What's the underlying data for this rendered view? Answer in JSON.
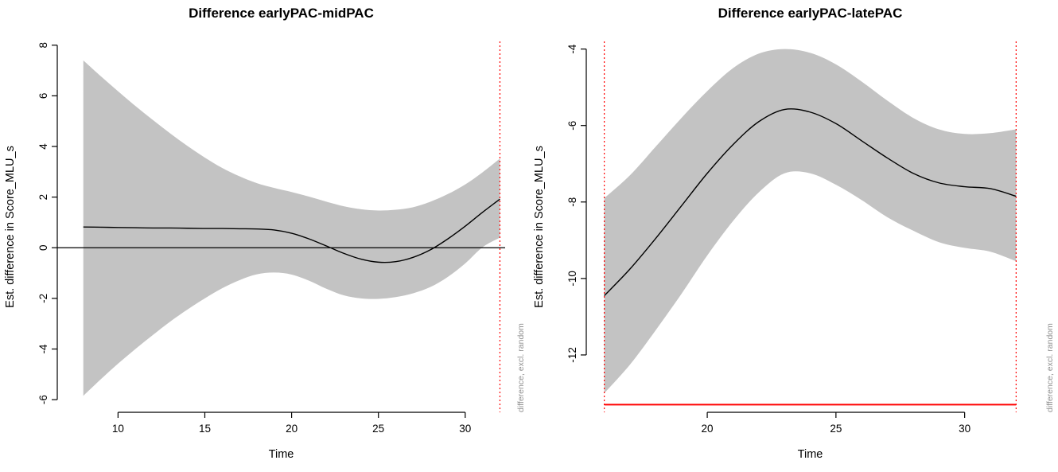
{
  "page": {
    "background": "#ffffff"
  },
  "chart_data": [
    {
      "type": "line",
      "title": "Difference earlyPAC-midPAC",
      "xlabel": "Time",
      "ylabel": "Est. difference in Score_MLU_s",
      "side_label": "difference, excl. random",
      "xlim": [
        6.5,
        32.3
      ],
      "ylim": [
        -6.5,
        8.15
      ],
      "xticks": [
        10,
        15,
        20,
        25,
        30
      ],
      "yticks": [
        -6,
        -4,
        -2,
        0,
        2,
        4,
        6,
        8
      ],
      "x": [
        8,
        9,
        10,
        11,
        12,
        13,
        14,
        15,
        16,
        17,
        18,
        19,
        20,
        21,
        22,
        23,
        24,
        25,
        26,
        27,
        28,
        29,
        30,
        31,
        32
      ],
      "series": [
        {
          "name": "estimated difference",
          "values": [
            0.82,
            0.81,
            0.8,
            0.79,
            0.78,
            0.78,
            0.77,
            0.76,
            0.76,
            0.75,
            0.74,
            0.7,
            0.57,
            0.35,
            0.07,
            -0.22,
            -0.45,
            -0.57,
            -0.55,
            -0.38,
            -0.08,
            0.35,
            0.85,
            1.4,
            1.92
          ]
        }
      ],
      "band": {
        "upper": [
          7.4,
          6.78,
          6.18,
          5.6,
          5.05,
          4.52,
          4.02,
          3.56,
          3.15,
          2.82,
          2.55,
          2.36,
          2.2,
          2.02,
          1.82,
          1.64,
          1.52,
          1.47,
          1.5,
          1.6,
          1.82,
          2.12,
          2.5,
          2.98,
          3.52
        ],
        "lower": [
          -5.85,
          -5.2,
          -4.58,
          -4.0,
          -3.45,
          -2.92,
          -2.44,
          -2.0,
          -1.6,
          -1.28,
          -1.05,
          -0.98,
          -1.06,
          -1.3,
          -1.62,
          -1.88,
          -2.0,
          -2.02,
          -1.95,
          -1.8,
          -1.55,
          -1.15,
          -0.62,
          0.02,
          0.4
        ]
      },
      "hlines": [
        {
          "y": 0,
          "color": "#000000",
          "width": 1.2,
          "style": "solid",
          "full_width": true
        }
      ],
      "vlines": [
        {
          "x": 32,
          "color": "#ff0000",
          "style": "dotted"
        }
      ],
      "colors": {
        "band": "#c3c3c3",
        "line": "#000000",
        "axis": "#000000",
        "side_label": "#8f8f8f"
      },
      "grid": false,
      "legend": "none"
    },
    {
      "type": "line",
      "title": "Difference earlyPAC-latePAC",
      "xlabel": "Time",
      "ylabel": "Est. difference in Score_MLU_s",
      "side_label": "difference, excl. random",
      "xlim": [
        15.3,
        32.7
      ],
      "ylim": [
        -13.5,
        -3.8
      ],
      "xticks": [
        20,
        25,
        30
      ],
      "yticks": [
        -12,
        -10,
        -8,
        -6,
        -4
      ],
      "x": [
        16,
        17,
        18,
        19,
        20,
        21,
        22,
        23,
        24,
        25,
        26,
        27,
        28,
        29,
        30,
        31,
        32
      ],
      "series": [
        {
          "name": "estimated difference",
          "values": [
            -10.45,
            -9.75,
            -8.95,
            -8.1,
            -7.25,
            -6.5,
            -5.9,
            -5.58,
            -5.65,
            -5.95,
            -6.4,
            -6.85,
            -7.25,
            -7.5,
            -7.6,
            -7.65,
            -7.85
          ]
        }
      ],
      "band": {
        "upper": [
          -7.9,
          -7.3,
          -6.55,
          -5.8,
          -5.1,
          -4.5,
          -4.12,
          -4.0,
          -4.1,
          -4.4,
          -4.85,
          -5.35,
          -5.8,
          -6.1,
          -6.22,
          -6.2,
          -6.1
        ],
        "lower": [
          -13.0,
          -12.25,
          -11.35,
          -10.4,
          -9.4,
          -8.5,
          -7.75,
          -7.25,
          -7.25,
          -7.55,
          -7.95,
          -8.4,
          -8.75,
          -9.05,
          -9.2,
          -9.3,
          -9.55
        ]
      },
      "hlines": [
        {
          "y": -13.3,
          "color": "#ff0000",
          "width": 2,
          "style": "solid",
          "span": [
            16,
            32
          ]
        }
      ],
      "vlines": [
        {
          "x": 16,
          "color": "#ff0000",
          "style": "dotted"
        },
        {
          "x": 32,
          "color": "#ff0000",
          "style": "dotted"
        }
      ],
      "colors": {
        "band": "#c3c3c3",
        "line": "#000000",
        "axis": "#000000",
        "side_label": "#8f8f8f"
      },
      "grid": false,
      "legend": "none"
    }
  ]
}
